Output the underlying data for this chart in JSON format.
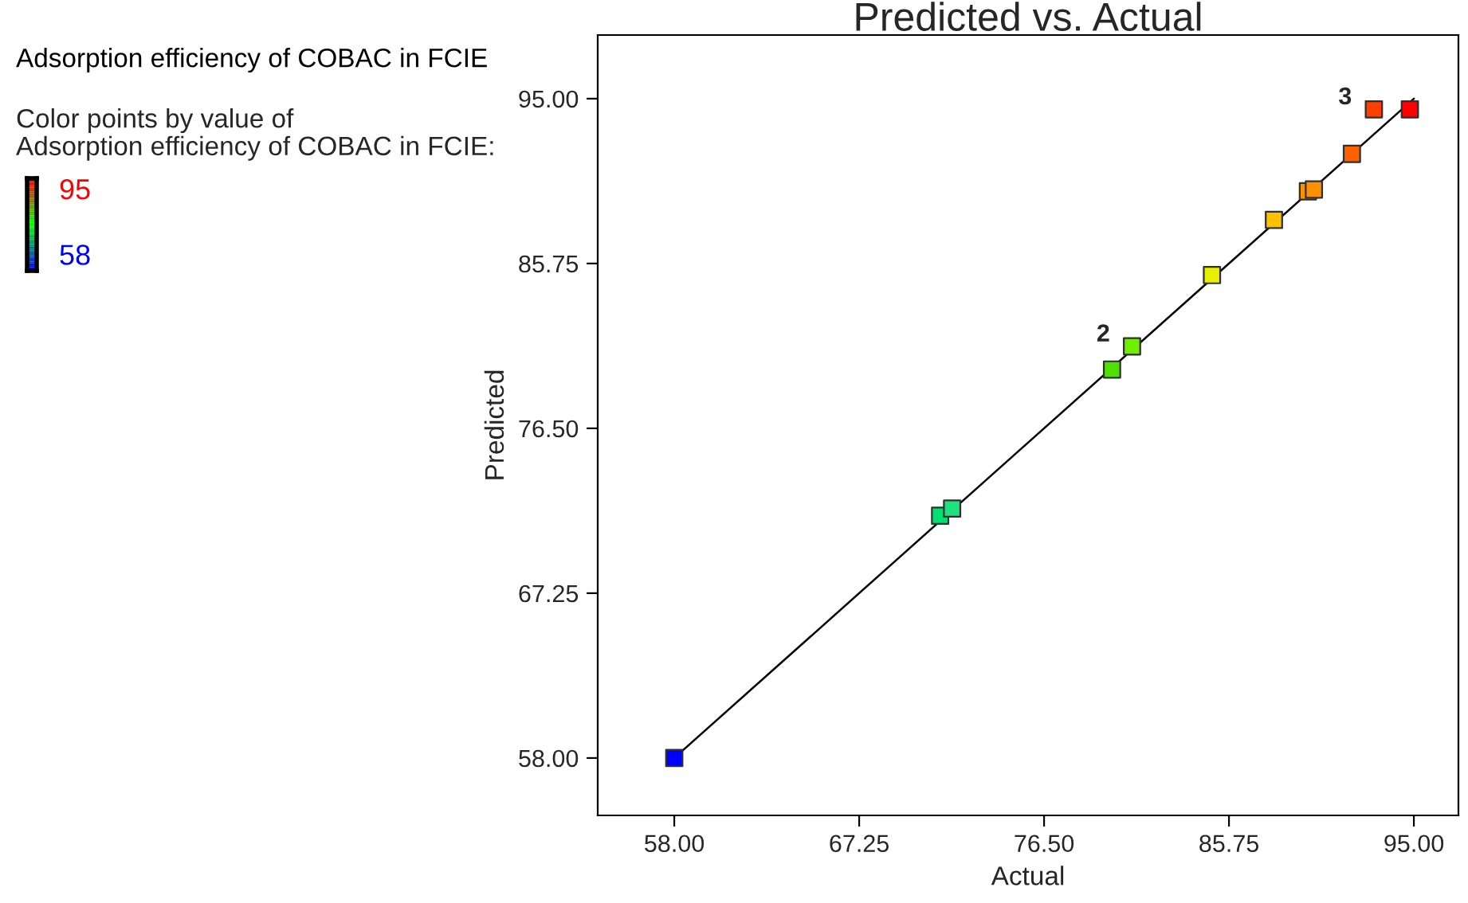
{
  "chart_data": {
    "type": "scatter",
    "title": "Predicted vs. Actual",
    "xlabel": "Actual",
    "ylabel": "Predicted",
    "clabel": "Color points by value of\nAdsorption efficiency of COBAC in FCIE:",
    "annotations": [
      "Adsorption efficiency of COBAC in FCIE",
      "95",
      "58",
      {
        "text": "2",
        "x": 80.9,
        "y": 81.1
      },
      {
        "text": "3",
        "x": 93.0,
        "y": 94.4
      }
    ],
    "marker": "square",
    "grid": false,
    "xlim": [
      54.17,
      97.23
    ],
    "ylim": [
      54.78,
      98.57
    ],
    "xticks": [
      {
        "value": 58,
        "label": "58.00"
      },
      {
        "value": 67.25,
        "label": "67.25"
      },
      {
        "value": 76.5,
        "label": "76.50"
      },
      {
        "value": 85.75,
        "label": "85.75"
      },
      {
        "value": 95,
        "label": "95.00"
      }
    ],
    "yticks": [
      {
        "value": 58,
        "label": "58.00"
      },
      {
        "value": 67.25,
        "label": "67.25"
      },
      {
        "value": 76.5,
        "label": "76.50"
      },
      {
        "value": 85.75,
        "label": "85.75"
      },
      {
        "value": 95,
        "label": "95.00"
      }
    ],
    "series": [
      {
        "type": "line",
        "marker": "none",
        "color": "#000000",
        "x": [
          58,
          95
        ],
        "values": [
          58,
          95
        ]
      },
      {
        "x": [
          58,
          71.3,
          71.9,
          79.9,
          80.9,
          84.9,
          88.0,
          89.7,
          90.0,
          91.9,
          93.0,
          94.8
        ],
        "values": [
          58,
          71.6,
          72.0,
          79.8,
          81.1,
          85.1,
          88.2,
          89.8,
          89.9,
          91.9,
          94.4,
          94.4
        ],
        "colors": [
          "#0000ff",
          "#00e070",
          "#20e080",
          "#50e000",
          "#70ee00",
          "#e8f000",
          "#ffc000",
          "#ff9000",
          "#ff9000",
          "#ff6000",
          "#ff4000",
          "#ff0000"
        ]
      }
    ]
  }
}
